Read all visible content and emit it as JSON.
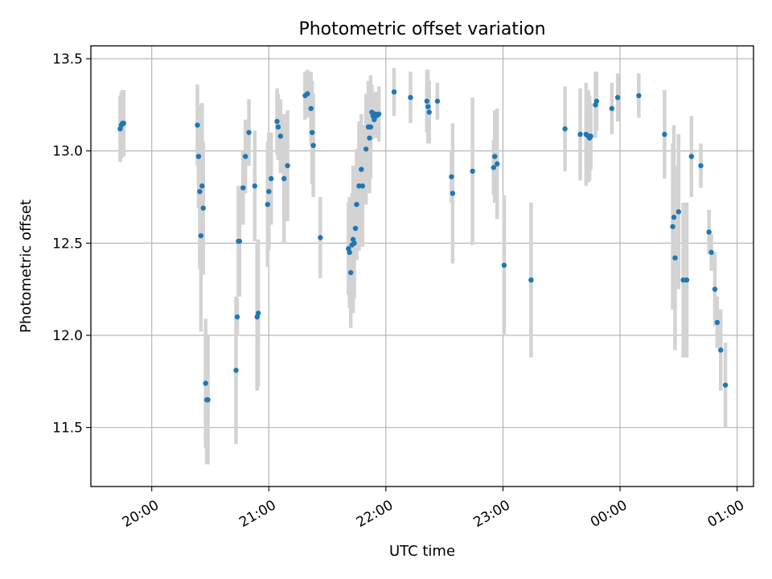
{
  "chart_data": {
    "type": "scatter",
    "title": "Photometric offset variation",
    "xlabel": "UTC time",
    "ylabel": "Photometric offset",
    "x_tick_values": [
      20.0,
      21.0,
      22.0,
      23.0,
      24.0,
      25.0
    ],
    "x_tick_labels": [
      "20:00",
      "21:00",
      "22:00",
      "23:00",
      "00:00",
      "01:00"
    ],
    "y_tick_values": [
      11.5,
      12.0,
      12.5,
      13.0,
      13.5
    ],
    "y_tick_labels": [
      "11.5",
      "12.0",
      "12.5",
      "13.0",
      "13.5"
    ],
    "xlim": [
      19.48,
      25.14
    ],
    "ylim": [
      11.18,
      13.57
    ],
    "grid": true,
    "colors": {
      "points": "#1f77b4",
      "errorbars": "#d3d3d3"
    },
    "series": [
      {
        "x": [
          19.73,
          19.74,
          19.75,
          19.76,
          20.39,
          20.4,
          20.41,
          20.42,
          20.43,
          20.44,
          20.46,
          20.47,
          20.48,
          20.72,
          20.73,
          20.74,
          20.75,
          20.78,
          20.8,
          20.83,
          20.88,
          20.9,
          20.91,
          20.99,
          21.0,
          21.02,
          21.07,
          21.08,
          21.1,
          21.13,
          21.16,
          21.31,
          21.33,
          21.36,
          21.37,
          21.38,
          21.44,
          21.68,
          21.69,
          21.7,
          21.71,
          21.72,
          21.73,
          21.74,
          21.75,
          21.77,
          21.79,
          21.8,
          21.83,
          21.85,
          21.86,
          21.87,
          21.88,
          21.89,
          21.9,
          21.91,
          21.92,
          21.94,
          22.07,
          22.21,
          22.35,
          22.36,
          22.37,
          22.44,
          22.56,
          22.57,
          22.74,
          22.92,
          22.93,
          22.95,
          23.01,
          23.24,
          23.53,
          23.66,
          23.71,
          23.73,
          23.74,
          23.75,
          23.79,
          23.8,
          23.93,
          23.98,
          24.16,
          24.38,
          24.45,
          24.46,
          24.47,
          24.5,
          24.54,
          24.57,
          24.61,
          24.69,
          24.76,
          24.78,
          24.81,
          24.83,
          24.86,
          24.9
        ],
        "y": [
          13.12,
          13.14,
          13.15,
          13.15,
          13.14,
          12.97,
          12.78,
          12.54,
          12.81,
          12.69,
          11.74,
          11.65,
          11.65,
          11.81,
          12.1,
          12.51,
          12.51,
          12.8,
          12.97,
          13.1,
          12.81,
          12.1,
          12.12,
          12.71,
          12.78,
          12.85,
          13.16,
          13.13,
          13.08,
          12.85,
          12.92,
          13.3,
          13.31,
          13.23,
          13.1,
          13.03,
          12.53,
          12.47,
          12.45,
          12.34,
          12.49,
          12.52,
          12.5,
          12.58,
          12.71,
          12.81,
          12.9,
          12.81,
          13.01,
          13.13,
          13.07,
          13.13,
          13.21,
          13.19,
          13.17,
          13.2,
          13.19,
          13.2,
          13.32,
          13.29,
          13.27,
          13.24,
          13.21,
          13.27,
          12.86,
          12.77,
          12.89,
          12.91,
          12.97,
          12.93,
          12.38,
          12.3,
          13.12,
          13.09,
          13.09,
          13.08,
          13.07,
          13.08,
          13.25,
          13.27,
          13.23,
          13.29,
          13.3,
          13.09,
          12.59,
          12.64,
          12.42,
          12.67,
          12.3,
          12.3,
          12.97,
          12.92,
          12.56,
          12.45,
          12.25,
          12.07,
          11.92,
          11.73
        ],
        "yerr": [
          0.18,
          0.18,
          0.18,
          0.18,
          0.22,
          0.28,
          0.42,
          0.52,
          0.45,
          0.36,
          0.35,
          0.35,
          0.35,
          0.4,
          0.1,
          0.3,
          0.3,
          0.2,
          0.2,
          0.18,
          0.3,
          0.4,
          0.4,
          0.34,
          0.32,
          0.25,
          0.18,
          0.18,
          0.2,
          0.35,
          0.3,
          0.13,
          0.13,
          0.2,
          0.28,
          0.28,
          0.22,
          0.25,
          0.3,
          0.3,
          0.28,
          0.4,
          0.3,
          0.15,
          0.3,
          0.35,
          0.3,
          0.33,
          0.3,
          0.25,
          0.3,
          0.28,
          0.15,
          0.1,
          0.1,
          0.12,
          0.12,
          0.15,
          0.13,
          0.14,
          0.17,
          0.2,
          0.17,
          0.1,
          0.14,
          0.38,
          0.4,
          0.15,
          0.25,
          0.3,
          0.38,
          0.42,
          0.23,
          0.25,
          0.28,
          0.25,
          0.23,
          0.18,
          0.18,
          0.16,
          0.14,
          0.13,
          0.12,
          0.24,
          0.45,
          0.5,
          0.5,
          0.42,
          0.42,
          0.42,
          0.22,
          0.12,
          0.12,
          0.1,
          0.2,
          0.14,
          0.22,
          0.23
        ]
      }
    ]
  }
}
